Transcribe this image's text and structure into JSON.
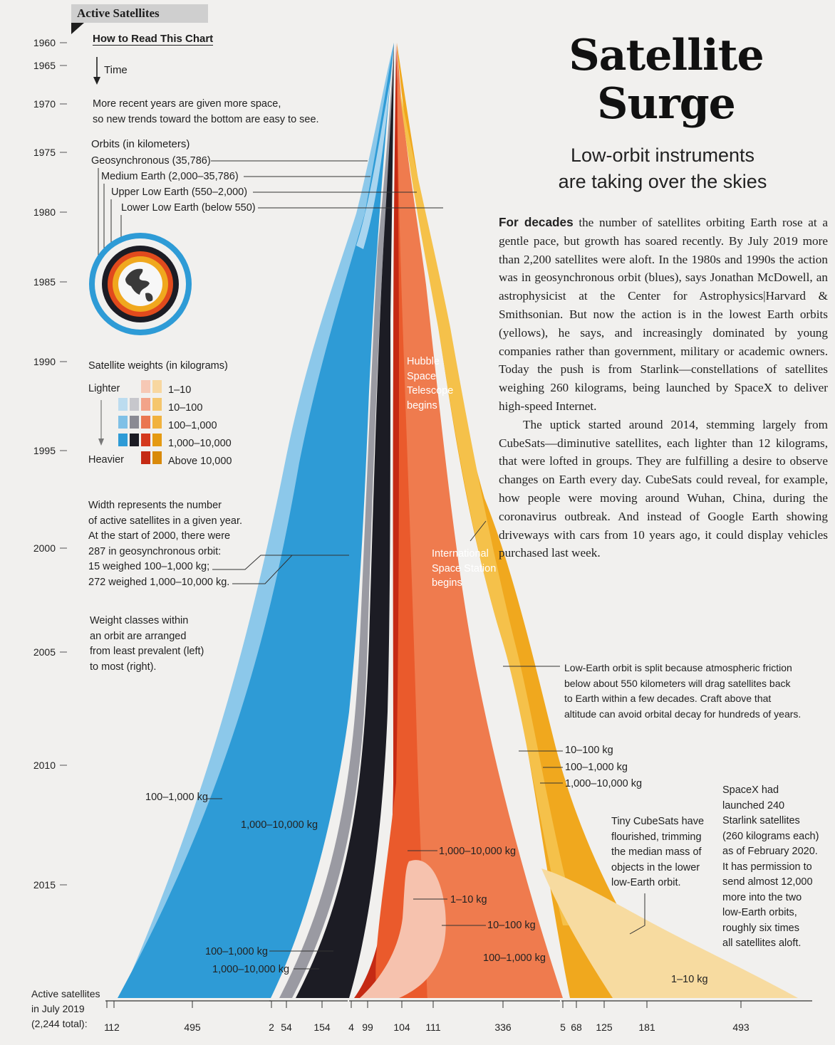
{
  "section_label": "Active Satellites",
  "title": [
    "Satellite",
    "Surge"
  ],
  "subtitle": [
    "Low-orbit instruments",
    "are taking over the skies"
  ],
  "body": [
    {
      "lead": "For decades",
      "text": " the number of satellites orbiting Earth rose at a gentle pace, but growth has soared recently. By July 2019 more than 2,200 satellites were aloft. In the 1980s and 1990s the action was in geosynchronous orbit (blues), says Jonathan McDowell, an astrophysicist at the Center for Astrophysics|Harvard & Smithsonian. But now the action is in the lowest Earth orbits (yellows), he says, and increasingly dominated by young companies rather than government, military or academic owners. Today the push is from Starlink—constellations of satellites weighing 260 kilograms, being launched by SpaceX to deliver high-speed Internet."
    },
    {
      "lead": "",
      "text": "The uptick started around 2014, stemming largely from CubeSats—diminutive satellites, each lighter than 12 kilograms, that were lofted in groups. They are fulfilling a desire to observe changes on Earth every day. CubeSats could reveal, for example, how people were moving around Wuhan, China, during the coronavirus outbreak. And instead of Google Earth showing driveways with cars from 10 years ago, it could display vehicles purchased last week."
    }
  ],
  "how_to_read": {
    "heading": "How to Read This Chart",
    "time_label": "Time",
    "time_note": [
      "More recent years are given more space,",
      "so new trends toward the bottom are easy to see."
    ]
  },
  "orbits_legend": {
    "heading": "Orbits (in kilometers)",
    "items": [
      {
        "label": "Geosynchronous (35,786)",
        "color": "#2e9bd6"
      },
      {
        "label": "Medium Earth (2,000–35,786)",
        "color": "#1c1c24"
      },
      {
        "label": "Upper Low Earth (550–2,000)",
        "color": "#e14a1d"
      },
      {
        "label": "Lower Low Earth (below 550)",
        "color": "#f0a81e"
      }
    ]
  },
  "weights_legend": {
    "heading": "Satellite weights (in kilograms)",
    "lighter": "Lighter",
    "heavier": "Heavier",
    "classes": [
      "1–10",
      "10–100",
      "100–1,000",
      "1,000–10,000",
      "Above 10,000"
    ],
    "swatches": [
      [
        "",
        "",
        "#f6c8b5",
        "#f8d7a0"
      ],
      [
        "#bcdcef",
        "#c7c7cc",
        "#f2a389",
        "#f5c66d"
      ],
      [
        "#7fc0e6",
        "#8a8a93",
        "#ea7650",
        "#f1b23e"
      ],
      [
        "#2e9bd6",
        "#1c1c24",
        "#d4381c",
        "#e59a12"
      ],
      [
        "",
        "",
        "#c52a14",
        "#d98a0a"
      ]
    ]
  },
  "notes": {
    "width": [
      "Width represents the number",
      "of active satellites in a given year.",
      "At the start of 2000, there were",
      "287 in geosynchronous orbit:",
      "15 weighed 100–1,000 kg;",
      "272 weighed 1,000–10,000 kg."
    ],
    "order": [
      "Weight classes within",
      "an orbit are arranged",
      "from least prevalent (left)",
      "to most (right)."
    ],
    "low_earth": [
      "Low-Earth orbit is split because atmospheric friction",
      "below about 550 kilometers will drag satellites back",
      "to Earth within a few decades. Craft above that",
      "altitude can avoid orbital decay for hundreds of years."
    ],
    "cubesats": [
      "Tiny CubeSats have",
      "flourished, trimming",
      "the median mass of",
      "objects in the lower",
      "low-Earth orbit."
    ],
    "spacex": [
      "SpaceX had",
      "launched 240",
      "Starlink satellites",
      "(260 kilograms each)",
      "as of February 2020.",
      "It has permission to",
      "send almost 12,000",
      "more into the two",
      "low-Earth orbits,",
      "roughly six times",
      "all satellites aloft."
    ],
    "hubble": [
      "Hubble",
      "Space",
      "Telescope",
      "begins"
    ],
    "iss": [
      "International",
      "Space Station",
      "begins"
    ]
  },
  "stream_labels": {
    "geo_100_1000_2010": "100–1,000 kg",
    "geo_1000_10000_2012": "1,000–10,000 kg",
    "upper_1000_10000": "1,000–10,000 kg",
    "upper_1_10": "1–10 kg",
    "upper_10_100": "10–100 kg",
    "upper_100_1000": "100–1,000 kg",
    "lower_10_100": "10–100 kg",
    "lower_100_1000": "100–1,000 kg",
    "lower_1000_10000": "1,000–10,000 kg",
    "lower_1_10": "1–10 kg",
    "geo_100_1000_2019": "100–1,000 kg",
    "geo_1000_10000_2019": "1,000–10,000 kg"
  },
  "bottom_label": [
    "Active satellites",
    "in July 2019",
    "(2,244 total):"
  ],
  "chart_data": {
    "type": "area",
    "y_axis": "year",
    "years": [
      1960,
      1965,
      1970,
      1975,
      1980,
      1985,
      1990,
      1995,
      2000,
      2005,
      2010,
      2015
    ],
    "year_labels": [
      "1960",
      "1965",
      "1970",
      "1975",
      "1980",
      "1985",
      "1990",
      "1995",
      "2000",
      "2005",
      "2010",
      "2015"
    ],
    "totals_2019": {
      "geosynchronous": [
        "1",
        "12",
        "495"
      ],
      "medium_earth": [
        "2",
        "54",
        "154"
      ],
      "upper_low_earth": [
        "4",
        "99",
        "104",
        "111",
        "336"
      ],
      "lower_low_earth": [
        "5",
        "68",
        "125",
        "181",
        "493"
      ]
    },
    "geosynchronous_2000": {
      "100–1,000 kg": 15,
      "1,000–10,000 kg": 272,
      "total": 287
    },
    "total_2019": 2244
  }
}
